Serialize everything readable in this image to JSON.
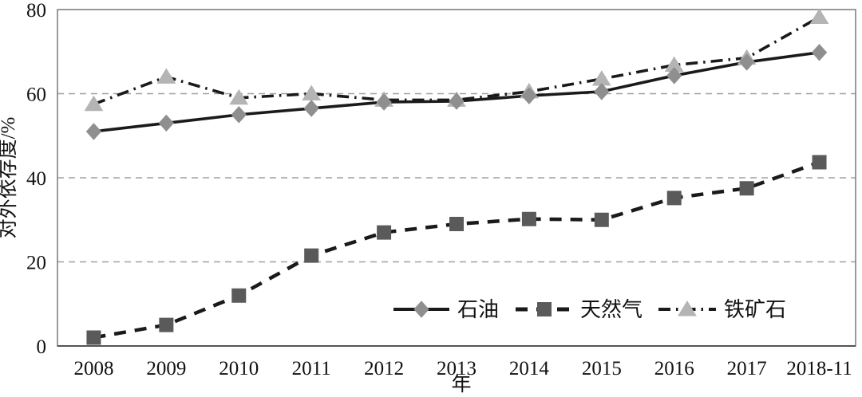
{
  "figure": {
    "background": "#ffffff",
    "border_color": "#808080",
    "grid_color": "#a0a0a0",
    "text_color": "#111111"
  },
  "chart_data": {
    "type": "line",
    "title": "",
    "xlabel": "年",
    "ylabel": "对外依存度/%",
    "ylim": [
      0,
      80
    ],
    "yticks": [
      0,
      20,
      40,
      60,
      80
    ],
    "gridlines_y": [
      20,
      40,
      60
    ],
    "grid": "horizontal dashed",
    "legend_position": "inside lower-right",
    "categories": [
      "2008",
      "2009",
      "2010",
      "2011",
      "2012",
      "2013",
      "2014",
      "2015",
      "2016",
      "2017",
      "2018-11"
    ],
    "series": [
      {
        "id": "oil",
        "name": "石油",
        "line_style": "solid",
        "line_color": "#1a1a1a",
        "marker": "diamond",
        "marker_color": "#8f8f8f",
        "values": [
          51,
          53,
          55,
          56.5,
          58,
          58.2,
          59.5,
          60.5,
          64.3,
          67.5,
          69.8
        ]
      },
      {
        "id": "gas",
        "name": "天然气",
        "line_style": "dashed",
        "line_color": "#1a1a1a",
        "marker": "square",
        "marker_color": "#5a5a5a",
        "values": [
          2,
          5,
          12,
          21.5,
          27,
          29,
          30.2,
          30,
          35.2,
          37.5,
          43.7
        ]
      },
      {
        "id": "iron-ore",
        "name": "铁矿石",
        "line_style": "dash-dot",
        "line_color": "#1a1a1a",
        "marker": "triangle",
        "marker_color": "#b4b4b4",
        "values": [
          57.5,
          64,
          59,
          60,
          58.5,
          58.5,
          60.5,
          63.5,
          66.8,
          68.5,
          78.2
        ]
      }
    ]
  }
}
